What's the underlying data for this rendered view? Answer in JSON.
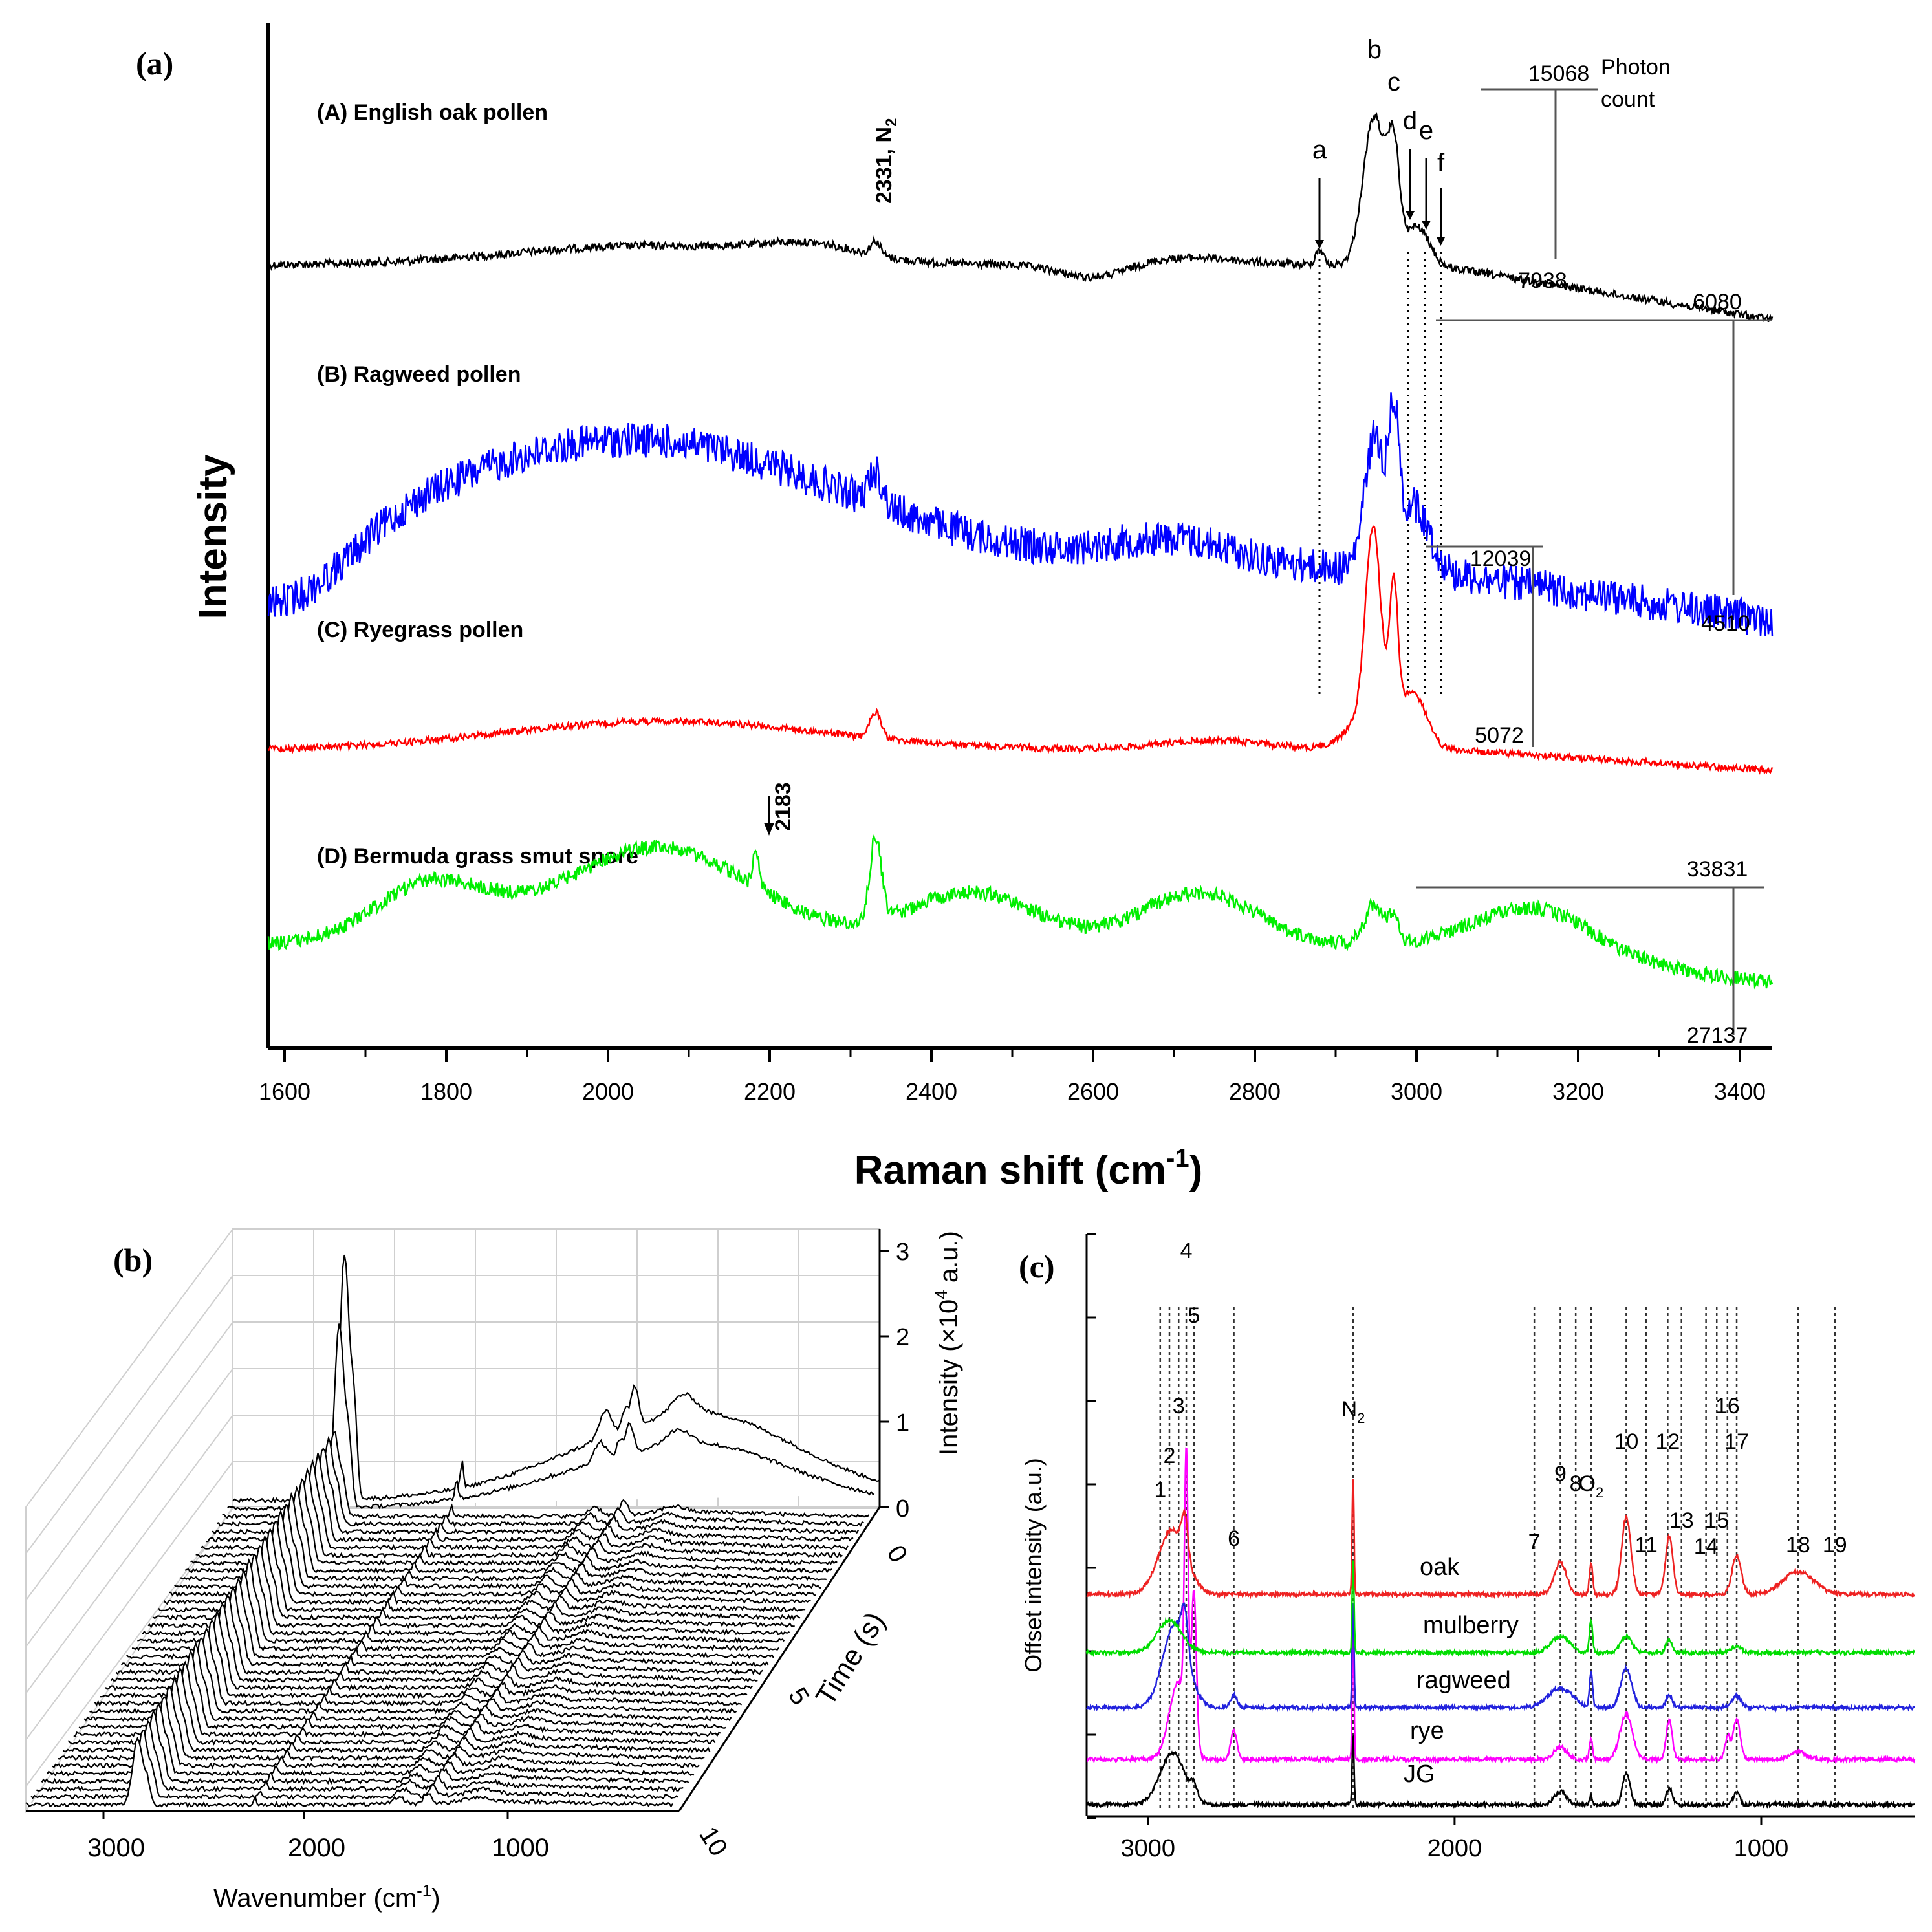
{
  "chart_data": [
    {
      "panel": "(a)",
      "type": "line",
      "xlabel": "Raman shift (cm",
      "xlabel_sup": "-1",
      "xlabel_end": ")",
      "ylabel": "Intensity",
      "xlim": [
        1580,
        3440
      ],
      "xticks": [
        1600,
        1800,
        2000,
        2200,
        2400,
        2600,
        2800,
        3000,
        3200,
        3400
      ],
      "annotations": {
        "n2_label": "2331, N",
        "n2_sub": "2",
        "arrow_2183": "2183",
        "photon_count_1": "Photon",
        "photon_count_2": "count",
        "peak_letters": [
          "a",
          "b",
          "c",
          "d",
          "e",
          "f"
        ],
        "peak_letter_positions": [
          2880,
          2948,
          2972,
          2992,
          3012,
          3030
        ]
      },
      "series": [
        {
          "name": "(A) English oak pollen",
          "color": "#000000",
          "scale_max": "15068",
          "scale_min": "7938"
        },
        {
          "name": "(B) Ragweed pollen",
          "color": "#0000ff",
          "scale_max": "6080",
          "scale_min": "4510"
        },
        {
          "name": "(C) Ryegrass pollen",
          "color": "#ff0000",
          "scale_max": "12039",
          "scale_min": "5072"
        },
        {
          "name": "(D) Bermuda grass smut spore",
          "color": "#00ee00",
          "scale_max": "33831",
          "scale_min": "27137"
        }
      ]
    },
    {
      "panel": "(b)",
      "type": "line",
      "subtype": "waterfall-3d",
      "xlabel": "Wavenumber (cm",
      "xlabel_sup": "-1",
      "xlabel_end": ")",
      "ylabel": "Intensity (×10",
      "ylabel_sup": "4",
      "ylabel_end": " a.u.)",
      "zlabel": "Time (s)",
      "xticks": [
        "3000",
        "2000",
        "1000"
      ],
      "yticks": [
        "0",
        "1",
        "2",
        "3"
      ],
      "zticks": [
        "0",
        "5",
        "10"
      ],
      "n_spectra": 40
    },
    {
      "panel": "(c)",
      "type": "line",
      "xlabel": "",
      "ylabel": "Offset intensity (a.u.)",
      "xlim": [
        3200,
        500
      ],
      "xticks": [
        3000,
        2000,
        1000
      ],
      "series": [
        {
          "name": "rye",
          "color": "#ff00ff"
        },
        {
          "name": "ragweed",
          "color": "#2222dd"
        },
        {
          "name": "mulberry",
          "color": "#00dd00"
        },
        {
          "name": "oak",
          "color": "#ee2222"
        },
        {
          "name": "JG",
          "color": "#000000"
        }
      ],
      "peak_labels": [
        "1",
        "2",
        "3",
        "4",
        "5",
        "6",
        "N",
        "9",
        "8",
        "7",
        "O",
        "10",
        "11",
        "12",
        "13",
        "14",
        "15",
        "16",
        "17",
        "18",
        "19"
      ],
      "peak_positions": [
        2960,
        2930,
        2900,
        2875,
        2850,
        2720,
        2331,
        1655,
        1605,
        1740,
        1555,
        1440,
        1375,
        1305,
        1260,
        1180,
        1145,
        1110,
        1080,
        880,
        760
      ],
      "peak_label_subs": {
        "N": "2",
        "O": "2"
      }
    }
  ]
}
